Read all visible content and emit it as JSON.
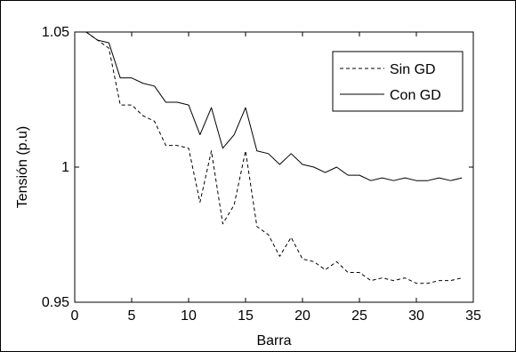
{
  "chart_data": {
    "type": "line",
    "title": "",
    "xlabel": "Barra",
    "ylabel": "Tensión (p.u)",
    "xlim": [
      0,
      35
    ],
    "ylim": [
      0.95,
      1.05
    ],
    "xticks": [
      0,
      5,
      10,
      15,
      20,
      25,
      30,
      35
    ],
    "xtick_labels": [
      "0",
      "5",
      "10",
      "15",
      "20",
      "25",
      "30",
      "35"
    ],
    "yticks": [
      0.95,
      1,
      1.05
    ],
    "ytick_labels": [
      "0.95",
      "1",
      "1.05"
    ],
    "grid": false,
    "legend_position": "top-right",
    "x": [
      1,
      2,
      3,
      4,
      5,
      6,
      7,
      8,
      9,
      10,
      11,
      12,
      13,
      14,
      15,
      16,
      17,
      18,
      19,
      20,
      21,
      22,
      23,
      24,
      25,
      26,
      27,
      28,
      29,
      30,
      31,
      32,
      33,
      34
    ],
    "series": [
      {
        "name": "Sin GD",
        "style": "dashed",
        "color": "#000000",
        "values": [
          1.05,
          1.047,
          1.044,
          1.023,
          1.023,
          1.019,
          1.017,
          1.008,
          1.008,
          1.007,
          0.987,
          1.006,
          0.979,
          0.986,
          1.006,
          0.978,
          0.975,
          0.967,
          0.974,
          0.966,
          0.965,
          0.962,
          0.965,
          0.961,
          0.961,
          0.958,
          0.959,
          0.958,
          0.959,
          0.957,
          0.957,
          0.958,
          0.958,
          0.959
        ]
      },
      {
        "name": "Con GD",
        "style": "solid",
        "color": "#000000",
        "values": [
          1.05,
          1.047,
          1.046,
          1.033,
          1.033,
          1.031,
          1.03,
          1.024,
          1.024,
          1.023,
          1.012,
          1.022,
          1.007,
          1.012,
          1.022,
          1.006,
          1.005,
          1.001,
          1.005,
          1.001,
          1.0,
          0.998,
          1.0,
          0.997,
          0.997,
          0.995,
          0.996,
          0.995,
          0.996,
          0.995,
          0.995,
          0.996,
          0.995,
          0.996
        ]
      }
    ]
  }
}
